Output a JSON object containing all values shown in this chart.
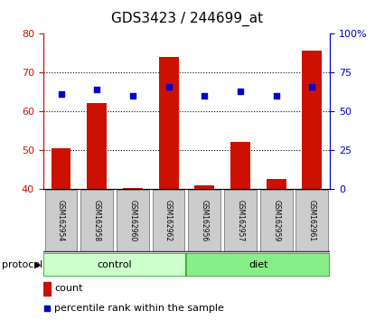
{
  "title": "GDS3423 / 244699_at",
  "samples": [
    "GSM162954",
    "GSM162958",
    "GSM162960",
    "GSM162962",
    "GSM162956",
    "GSM162957",
    "GSM162959",
    "GSM162961"
  ],
  "count_values": [
    50.5,
    62.0,
    40.2,
    74.0,
    41.0,
    52.0,
    42.5,
    75.5
  ],
  "percentile_values": [
    61.0,
    64.0,
    60.0,
    66.0,
    60.0,
    63.0,
    60.0,
    66.0
  ],
  "left_ylim": [
    40,
    80
  ],
  "left_yticks": [
    40,
    50,
    60,
    70,
    80
  ],
  "right_ylim": [
    0,
    100
  ],
  "right_yticks": [
    0,
    25,
    50,
    75,
    100
  ],
  "right_yticklabels": [
    "0",
    "25",
    "50",
    "75",
    "100%"
  ],
  "bar_color": "#CC1100",
  "dot_color": "#0000CC",
  "left_tick_color": "#CC1100",
  "right_tick_color": "#0000CC",
  "protocol_groups": [
    {
      "label": "control",
      "indices": [
        0,
        1,
        2,
        3
      ],
      "color_light": "#CCFFCC",
      "color_dark": "#44CC44"
    },
    {
      "label": "diet",
      "indices": [
        4,
        5,
        6,
        7
      ],
      "color_light": "#88EE88",
      "color_dark": "#44CC44"
    }
  ],
  "protocol_label": "protocol",
  "legend_count_label": "count",
  "legend_percentile_label": "percentile rank within the sample",
  "bar_base": 40,
  "dot_size": 25,
  "gridlines_at": [
    50,
    60,
    70
  ],
  "title_fontsize": 11,
  "tick_fontsize": 8,
  "sample_fontsize": 5.5,
  "legend_fontsize": 8,
  "proto_fontsize": 8
}
